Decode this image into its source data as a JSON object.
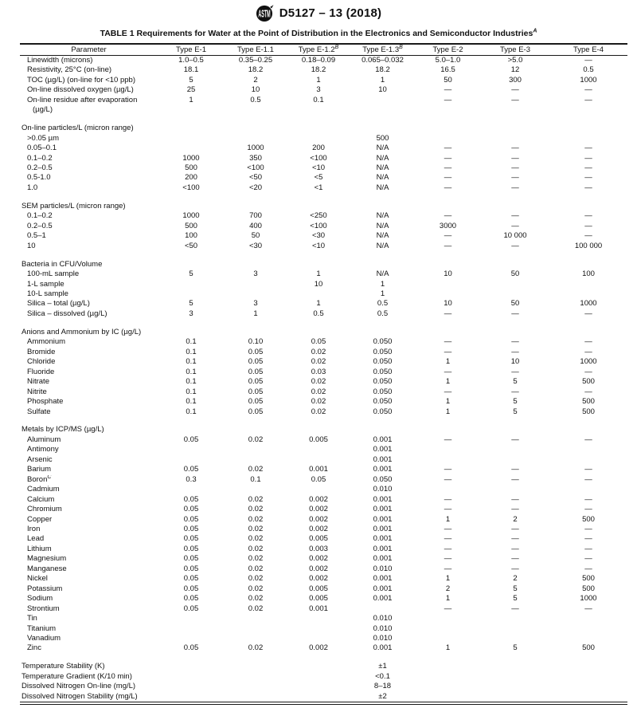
{
  "colors": {
    "background": "#ffffff",
    "text": "#111111",
    "rule": "#1a1a1a"
  },
  "header": {
    "logo_icon": "astm-logo",
    "designation": "D5127 – 13 (2018)"
  },
  "table": {
    "title": "TABLE 1 Requirements for Water at the Point of Distribution in the Electronics and Semiconductor Industries",
    "title_footnote": "A",
    "columns": [
      {
        "label": "Parameter"
      },
      {
        "label": "Type E-1"
      },
      {
        "label": "Type E-1.1"
      },
      {
        "label": "Type E-1.2",
        "footnote": "B"
      },
      {
        "label": "Type E-1.3",
        "footnote": "B"
      },
      {
        "label": "Type E-2"
      },
      {
        "label": "Type E-3"
      },
      {
        "label": "Type E-4"
      }
    ],
    "rows": [
      {
        "type": "data",
        "label": "Linewidth (microns)",
        "cells": [
          "1.0–0.5",
          "0.35–0.25",
          "0.18–0.09",
          "0.065–0.032",
          "5.0–1.0",
          ">5.0",
          "—"
        ]
      },
      {
        "type": "data",
        "label": "Resistivity, 25°C (on-line)",
        "cells": [
          "18.1",
          "18.2",
          "18.2",
          "18.2",
          "16.5",
          "12",
          "0.5"
        ]
      },
      {
        "type": "data",
        "label": "TOC (µg/L) (on-line for <10 ppb)",
        "cells": [
          "5",
          "2",
          "1",
          "1",
          "50",
          "300",
          "1000"
        ]
      },
      {
        "type": "data",
        "label": "On-line dissolved oxygen (µg/L)",
        "cells": [
          "25",
          "10",
          "3",
          "10",
          "—",
          "—",
          "—"
        ]
      },
      {
        "type": "data",
        "label": "On-line residue after evaporation",
        "cells": [
          "1",
          "0.5",
          "0.1",
          "",
          "—",
          "—",
          "—"
        ]
      },
      {
        "type": "cont",
        "label": "(µg/L)",
        "cells": [
          "",
          "",
          "",
          "",
          "",
          "",
          ""
        ]
      },
      {
        "type": "spacer"
      },
      {
        "type": "section",
        "label": "On-line particles/L (micron range)",
        "cells": [
          "",
          "",
          "",
          "",
          "",
          "",
          ""
        ]
      },
      {
        "type": "data",
        "label": ">0.05 µm",
        "cells": [
          "",
          "",
          "",
          "500",
          "",
          "",
          ""
        ]
      },
      {
        "type": "data",
        "label": "0.05–0.1",
        "cells": [
          "",
          "1000",
          "200",
          "N/A",
          "—",
          "—",
          "—"
        ]
      },
      {
        "type": "data",
        "label": "0.1–0.2",
        "cells": [
          "1000",
          "350",
          "<100",
          "N/A",
          "—",
          "—",
          "—"
        ]
      },
      {
        "type": "data",
        "label": "0.2–0.5",
        "cells": [
          "500",
          "<100",
          "<10",
          "N/A",
          "—",
          "—",
          "—"
        ]
      },
      {
        "type": "data",
        "label": "0.5-1.0",
        "cells": [
          "200",
          "<50",
          "<5",
          "N/A",
          "—",
          "—",
          "—"
        ]
      },
      {
        "type": "data",
        "label": "1.0",
        "cells": [
          "<100",
          "<20",
          "<1",
          "N/A",
          "—",
          "—",
          "—"
        ]
      },
      {
        "type": "spacer"
      },
      {
        "type": "section",
        "label": "SEM particles/L (micron range)",
        "cells": [
          "",
          "",
          "",
          "",
          "",
          "",
          ""
        ]
      },
      {
        "type": "data",
        "label": "0.1–0.2",
        "cells": [
          "1000",
          "700",
          "<250",
          "N/A",
          "—",
          "—",
          "—"
        ]
      },
      {
        "type": "data",
        "label": "0.2–0.5",
        "cells": [
          "500",
          "400",
          "<100",
          "N/A",
          "3000",
          "—",
          "—"
        ]
      },
      {
        "type": "data",
        "label": "0.5–1",
        "cells": [
          "100",
          "50",
          "<30",
          "N/A",
          "—",
          "10 000",
          "—"
        ]
      },
      {
        "type": "data",
        "label": "10",
        "cells": [
          "<50",
          "<30",
          "<10",
          "N/A",
          "—",
          "—",
          "100 000"
        ]
      },
      {
        "type": "spacer"
      },
      {
        "type": "section",
        "label": "Bacteria in CFU/Volume",
        "cells": [
          "",
          "",
          "",
          "",
          "",
          "",
          ""
        ]
      },
      {
        "type": "data",
        "label": "100-mL sample",
        "cells": [
          "5",
          "3",
          "1",
          "N/A",
          "10",
          "50",
          "100"
        ]
      },
      {
        "type": "data",
        "label": "1-L sample",
        "cells": [
          "",
          "",
          "10",
          "1",
          "",
          "",
          ""
        ]
      },
      {
        "type": "data",
        "label": "10-L sample",
        "cells": [
          "",
          "",
          "",
          "1",
          "",
          "",
          ""
        ]
      },
      {
        "type": "data",
        "label": "Silica – total (µg/L)",
        "cells": [
          "5",
          "3",
          "1",
          "0.5",
          "10",
          "50",
          "1000"
        ]
      },
      {
        "type": "data",
        "label": "Silica – dissolved (µg/L)",
        "cells": [
          "3",
          "1",
          "0.5",
          "0.5",
          "—",
          "—",
          "—"
        ]
      },
      {
        "type": "spacer"
      },
      {
        "type": "section",
        "label": "Anions and Ammonium by IC (µg/L)",
        "cells": [
          "",
          "",
          "",
          "",
          "",
          "",
          ""
        ]
      },
      {
        "type": "data",
        "label": "Ammonium",
        "cells": [
          "0.1",
          "0.10",
          "0.05",
          "0.050",
          "—",
          "—",
          "—"
        ]
      },
      {
        "type": "data",
        "label": "Bromide",
        "cells": [
          "0.1",
          "0.05",
          "0.02",
          "0.050",
          "—",
          "—",
          "—"
        ]
      },
      {
        "type": "data",
        "label": "Chloride",
        "cells": [
          "0.1",
          "0.05",
          "0.02",
          "0.050",
          "1",
          "10",
          "1000"
        ]
      },
      {
        "type": "data",
        "label": "Fluoride",
        "cells": [
          "0.1",
          "0.05",
          "0.03",
          "0.050",
          "—",
          "—",
          "—"
        ]
      },
      {
        "type": "data",
        "label": "Nitrate",
        "cells": [
          "0.1",
          "0.05",
          "0.02",
          "0.050",
          "1",
          "5",
          "500"
        ]
      },
      {
        "type": "data",
        "label": "Nitrite",
        "cells": [
          "0.1",
          "0.05",
          "0.02",
          "0.050",
          "—",
          "—",
          "—"
        ]
      },
      {
        "type": "data",
        "label": "Phosphate",
        "cells": [
          "0.1",
          "0.05",
          "0.02",
          "0.050",
          "1",
          "5",
          "500"
        ]
      },
      {
        "type": "data",
        "label": "Sulfate",
        "cells": [
          "0.1",
          "0.05",
          "0.02",
          "0.050",
          "1",
          "5",
          "500"
        ]
      },
      {
        "type": "spacer"
      },
      {
        "type": "section",
        "label": "Metals by ICP/MS (µg/L)",
        "cells": [
          "",
          "",
          "",
          "",
          "",
          "",
          ""
        ]
      },
      {
        "type": "data",
        "label": "Aluminum",
        "cells": [
          "0.05",
          "0.02",
          "0.005",
          "0.001",
          "—",
          "—",
          "—"
        ]
      },
      {
        "type": "data",
        "label": "Antimony",
        "cells": [
          "",
          "",
          "",
          "0.001",
          "",
          "",
          ""
        ]
      },
      {
        "type": "data",
        "label": "Arsenic",
        "cells": [
          "",
          "",
          "",
          "0.001",
          "",
          "",
          ""
        ]
      },
      {
        "type": "data",
        "label": "Barium",
        "cells": [
          "0.05",
          "0.02",
          "0.001",
          "0.001",
          "—",
          "—",
          "—"
        ]
      },
      {
        "type": "data",
        "label": "Boron",
        "footnote": "C",
        "cells": [
          "0.3",
          "0.1",
          "0.05",
          "0.050",
          "—",
          "—",
          "—"
        ]
      },
      {
        "type": "data",
        "label": "Cadmium",
        "cells": [
          "",
          "",
          "",
          "0.010",
          "",
          "",
          ""
        ]
      },
      {
        "type": "data",
        "label": "Calcium",
        "cells": [
          "0.05",
          "0.02",
          "0.002",
          "0.001",
          "—",
          "—",
          "—"
        ]
      },
      {
        "type": "data",
        "label": "Chromium",
        "cells": [
          "0.05",
          "0.02",
          "0.002",
          "0.001",
          "—",
          "—",
          "—"
        ]
      },
      {
        "type": "data",
        "label": "Copper",
        "cells": [
          "0.05",
          "0.02",
          "0.002",
          "0.001",
          "1",
          "2",
          "500"
        ]
      },
      {
        "type": "data",
        "label": "Iron",
        "cells": [
          "0.05",
          "0.02",
          "0.002",
          "0.001",
          "—",
          "—",
          "—"
        ]
      },
      {
        "type": "data",
        "label": "Lead",
        "cells": [
          "0.05",
          "0.02",
          "0.005",
          "0.001",
          "—",
          "—",
          "—"
        ]
      },
      {
        "type": "data",
        "label": "Lithium",
        "cells": [
          "0.05",
          "0.02",
          "0.003",
          "0.001",
          "—",
          "—",
          "—"
        ]
      },
      {
        "type": "data",
        "label": "Magnesium",
        "cells": [
          "0.05",
          "0.02",
          "0.002",
          "0.001",
          "—",
          "—",
          "—"
        ]
      },
      {
        "type": "data",
        "label": "Manganese",
        "cells": [
          "0.05",
          "0.02",
          "0.002",
          "0.010",
          "—",
          "—",
          "—"
        ]
      },
      {
        "type": "data",
        "label": "Nickel",
        "cells": [
          "0.05",
          "0.02",
          "0.002",
          "0.001",
          "1",
          "2",
          "500"
        ]
      },
      {
        "type": "data",
        "label": "Potassium",
        "cells": [
          "0.05",
          "0.02",
          "0.005",
          "0.001",
          "2",
          "5",
          "500"
        ]
      },
      {
        "type": "data",
        "label": "Sodium",
        "cells": [
          "0.05",
          "0.02",
          "0.005",
          "0.001",
          "1",
          "5",
          "1000"
        ]
      },
      {
        "type": "data",
        "label": "Strontium",
        "cells": [
          "0.05",
          "0.02",
          "0.001",
          "",
          "—",
          "—",
          "—"
        ]
      },
      {
        "type": "data",
        "label": "Tin",
        "cells": [
          "",
          "",
          "",
          "0.010",
          "",
          "",
          ""
        ]
      },
      {
        "type": "data",
        "label": "Titanium",
        "cells": [
          "",
          "",
          "",
          "0.010",
          "",
          "",
          ""
        ]
      },
      {
        "type": "data",
        "label": "Vanadium",
        "cells": [
          "",
          "",
          "",
          "0.010",
          "",
          "",
          ""
        ]
      },
      {
        "type": "data",
        "label": "Zinc",
        "cells": [
          "0.05",
          "0.02",
          "0.002",
          "0.001",
          "1",
          "5",
          "500"
        ]
      },
      {
        "type": "spacer"
      },
      {
        "type": "flush",
        "label": "Temperature Stability (K)",
        "cells": [
          "",
          "",
          "",
          "±1",
          "",
          "",
          ""
        ]
      },
      {
        "type": "flush",
        "label": "Temperature Gradient (K/10 min)",
        "cells": [
          "",
          "",
          "",
          "<0.1",
          "",
          "",
          ""
        ]
      },
      {
        "type": "flush",
        "label": "Dissolved Nitrogen On-line (mg/L)",
        "cells": [
          "",
          "",
          "",
          "8–18",
          "",
          "",
          ""
        ]
      },
      {
        "type": "flush",
        "label": "Dissolved Nitrogen Stability (mg/L)",
        "cells": [
          "",
          "",
          "",
          "±2",
          "",
          "",
          ""
        ]
      }
    ]
  }
}
